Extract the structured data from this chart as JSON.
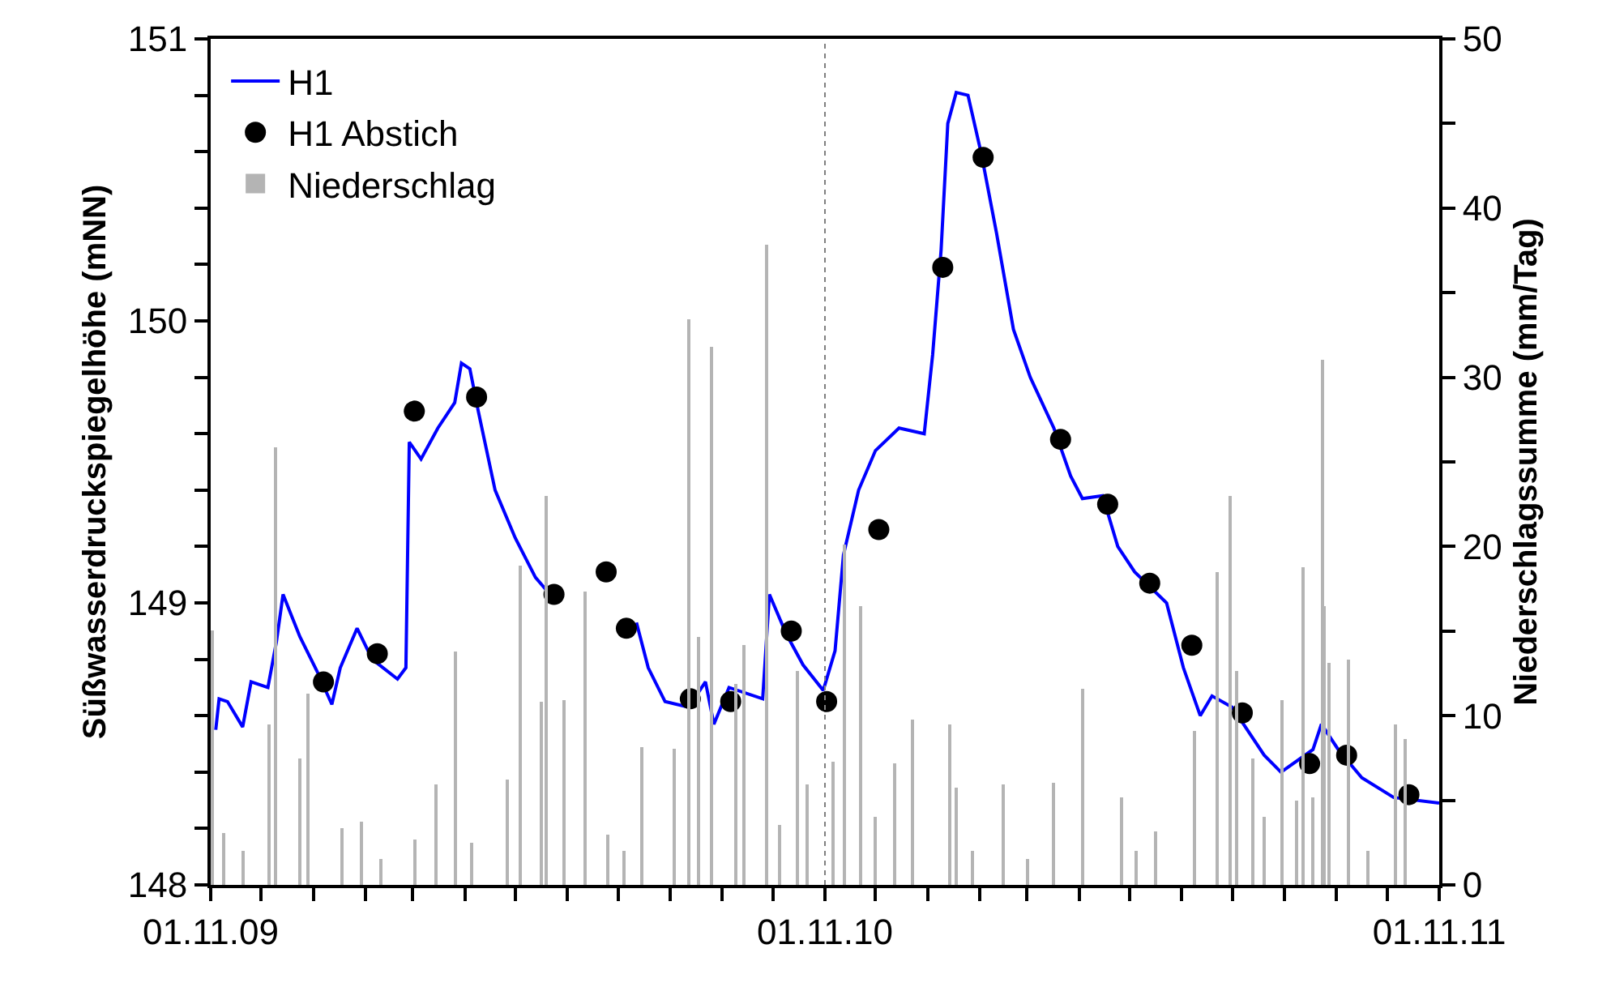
{
  "chart_data": {
    "type": "line",
    "xlabel": null,
    "ylabel": "Süßwasserdruckspiegelhöhe (mNN)",
    "y2label": "Niederschlagssumme (mm/Tag)",
    "xlim": [
      "2009-11-01",
      "2011-11-01"
    ],
    "xticks": [
      {
        "value": "2009-11-01",
        "label": "01.11.09"
      },
      {
        "value": "2009-12-01",
        "label": null
      },
      {
        "value": "2010-01-01",
        "label": null
      },
      {
        "value": "2010-02-01",
        "label": null
      },
      {
        "value": "2010-03-01",
        "label": null
      },
      {
        "value": "2010-04-01",
        "label": null
      },
      {
        "value": "2010-05-01",
        "label": null
      },
      {
        "value": "2010-06-01",
        "label": null
      },
      {
        "value": "2010-07-01",
        "label": null
      },
      {
        "value": "2010-08-01",
        "label": null
      },
      {
        "value": "2010-09-01",
        "label": null
      },
      {
        "value": "2010-10-01",
        "label": null
      },
      {
        "value": "2010-11-01",
        "label": "01.11.10"
      },
      {
        "value": "2010-12-01",
        "label": null
      },
      {
        "value": "2011-01-01",
        "label": null
      },
      {
        "value": "2011-02-01",
        "label": null
      },
      {
        "value": "2011-03-01",
        "label": null
      },
      {
        "value": "2011-04-01",
        "label": null
      },
      {
        "value": "2011-05-01",
        "label": null
      },
      {
        "value": "2011-06-01",
        "label": null
      },
      {
        "value": "2011-07-01",
        "label": null
      },
      {
        "value": "2011-08-01",
        "label": null
      },
      {
        "value": "2011-09-01",
        "label": null
      },
      {
        "value": "2011-10-01",
        "label": null
      },
      {
        "value": "2011-11-01",
        "label": "01.11.11"
      }
    ],
    "ylim": [
      148,
      151
    ],
    "yticks": [
      148,
      {
        "value": 148.2,
        "label": null
      },
      {
        "value": 148.4,
        "label": null
      },
      {
        "value": 148.6,
        "label": null
      },
      {
        "value": 148.8,
        "label": null
      },
      149,
      {
        "value": 149.2,
        "label": null
      },
      {
        "value": 149.4,
        "label": null
      },
      {
        "value": 149.6,
        "label": null
      },
      {
        "value": 149.8,
        "label": null
      },
      150,
      {
        "value": 150.2,
        "label": null
      },
      {
        "value": 150.4,
        "label": null
      },
      {
        "value": 150.6,
        "label": null
      },
      {
        "value": 150.8,
        "label": null
      },
      151
    ],
    "y2lim": [
      0,
      50
    ],
    "y2ticks": [
      0,
      {
        "value": 5,
        "label": null
      },
      10,
      {
        "value": 15,
        "label": null
      },
      20,
      {
        "value": 25,
        "label": null
      },
      30,
      {
        "value": 35,
        "label": null
      },
      40,
      {
        "value": 45,
        "label": null
      },
      50
    ],
    "legend": "top left",
    "ref_lines": [
      {
        "axis": "x",
        "value": "2010-11-01",
        "label": null,
        "color": "#808080",
        "line_style": "dotted"
      }
    ],
    "series": [
      {
        "name": "Niederschlag",
        "type": "bar",
        "axis": "y2",
        "color": "#b4b4b4",
        "x": [
          "2009-11-02",
          "2009-11-09",
          "2009-11-20",
          "2009-12-06",
          "2009-12-10",
          "2009-12-24",
          "2009-12-29",
          "2010-01-18",
          "2010-01-30",
          "2010-02-10",
          "2010-03-02",
          "2010-03-15",
          "2010-03-26",
          "2010-04-05",
          "2010-04-26",
          "2010-05-04",
          "2010-05-16",
          "2010-05-19",
          "2010-05-30",
          "2010-06-11",
          "2010-06-25",
          "2010-07-05",
          "2010-07-15",
          "2010-08-03",
          "2010-08-12",
          "2010-08-18",
          "2010-08-26",
          "2010-09-09",
          "2010-09-14",
          "2010-09-27",
          "2010-10-05",
          "2010-10-16",
          "2010-10-21",
          "2010-11-06",
          "2010-11-13",
          "2010-11-22",
          "2010-12-01",
          "2010-12-12",
          "2010-12-23",
          "2011-01-14",
          "2011-01-18",
          "2011-01-28",
          "2011-02-15",
          "2011-03-01",
          "2011-03-17",
          "2011-04-03",
          "2011-04-26",
          "2011-05-05",
          "2011-05-16",
          "2011-06-09",
          "2011-06-22",
          "2011-06-30",
          "2011-07-04",
          "2011-07-13",
          "2011-07-20",
          "2011-07-31",
          "2011-08-08",
          "2011-08-12",
          "2011-08-18",
          "2011-08-24",
          "2011-08-25",
          "2011-08-28",
          "2011-09-08",
          "2011-09-20",
          "2011-10-06",
          "2011-10-12"
        ],
        "values": [
          15.0,
          3.1,
          2.0,
          9.5,
          25.9,
          7.5,
          11.3,
          3.4,
          3.7,
          1.5,
          2.7,
          5.9,
          13.8,
          2.5,
          6.2,
          18.9,
          10.8,
          23.0,
          10.9,
          17.3,
          3.0,
          2.0,
          8.1,
          8.0,
          33.4,
          14.7,
          31.8,
          11.9,
          14.2,
          37.8,
          3.5,
          12.6,
          5.9,
          7.3,
          20.1,
          16.5,
          4.0,
          7.2,
          9.8,
          9.5,
          5.7,
          2.0,
          5.9,
          1.5,
          6.0,
          11.6,
          5.2,
          2.0,
          3.2,
          9.1,
          18.5,
          23.0,
          12.6,
          7.5,
          4.0,
          10.9,
          5.0,
          18.8,
          5.2,
          31.0,
          16.5,
          13.1,
          13.3,
          2.0,
          9.5,
          8.6
        ]
      },
      {
        "name": "H1",
        "color": "#0000ff",
        "line_style": "solid",
        "marker": "none",
        "x": [
          "2009-11-04",
          "2009-11-06",
          "2009-11-11",
          "2009-11-20",
          "2009-11-25",
          "2009-12-05",
          "2009-12-10",
          "2009-12-14",
          "2009-12-24",
          "2010-01-03",
          "2010-01-12",
          "2010-01-17",
          "2010-01-27",
          "2010-02-05",
          "2010-02-20",
          "2010-02-25",
          "2010-02-27",
          "2010-03-06",
          "2010-03-16",
          "2010-03-26",
          "2010-03-30",
          "2010-04-04",
          "2010-04-09",
          "2010-04-19",
          "2010-05-01",
          "2010-05-13",
          "2010-05-26",
          "2010-06-15",
          "2010-07-12",
          "2010-07-19",
          "2010-07-29",
          "2010-08-12",
          "2010-08-22",
          "2010-08-27",
          "2010-09-05",
          "2010-09-25",
          "2010-09-29",
          "2010-10-09",
          "2010-10-19",
          "2010-10-31",
          "2010-11-07",
          "2010-11-12",
          "2010-11-21",
          "2010-12-01",
          "2010-12-15",
          "2010-12-30",
          "2011-01-04",
          "2011-01-09",
          "2011-01-13",
          "2011-01-18",
          "2011-01-25",
          "2011-02-02",
          "2011-02-11",
          "2011-02-21",
          "2011-03-03",
          "2011-03-17",
          "2011-03-27",
          "2011-04-03",
          "2011-04-15",
          "2011-04-24",
          "2011-05-04",
          "2011-05-23",
          "2011-06-02",
          "2011-06-12",
          "2011-06-19",
          "2011-07-01",
          "2011-07-20",
          "2011-07-30",
          "2011-08-18",
          "2011-08-23",
          "2011-09-02",
          "2011-09-16",
          "2011-10-05",
          "2011-11-01"
        ],
        "values": [
          148.55,
          148.66,
          148.65,
          148.56,
          148.72,
          148.7,
          148.86,
          149.03,
          148.88,
          148.76,
          148.64,
          148.77,
          148.91,
          148.8,
          148.73,
          148.77,
          149.57,
          149.51,
          149.62,
          149.71,
          149.85,
          149.83,
          149.68,
          149.4,
          149.23,
          149.09,
          149.0,
          null,
          148.93,
          148.77,
          148.65,
          148.63,
          148.72,
          148.57,
          148.7,
          148.66,
          149.03,
          148.89,
          148.78,
          148.69,
          148.83,
          149.17,
          149.4,
          149.54,
          149.62,
          149.6,
          149.88,
          150.25,
          150.7,
          150.81,
          150.8,
          150.59,
          150.31,
          149.97,
          149.8,
          149.62,
          149.45,
          149.37,
          149.38,
          149.2,
          149.11,
          149.0,
          148.77,
          148.6,
          148.67,
          148.63,
          148.46,
          148.4,
          148.48,
          148.57,
          148.48,
          148.38,
          148.31,
          148.29
        ]
      },
      {
        "name": "H1 Abstich",
        "type": "scatter",
        "color": "#000000",
        "marker": "circle",
        "x": [
          "2010-01-07",
          "2010-02-08",
          "2010-03-02",
          "2010-04-08",
          "2010-05-24",
          "2010-06-24",
          "2010-07-06",
          "2010-08-13",
          "2010-09-06",
          "2010-10-12",
          "2010-11-02",
          "2010-12-03",
          "2011-01-10",
          "2011-02-03",
          "2011-03-21",
          "2011-04-18",
          "2011-05-13",
          "2011-06-07",
          "2011-07-07",
          "2011-08-16",
          "2011-09-07",
          "2011-10-14"
        ],
        "values": [
          148.72,
          148.82,
          149.68,
          149.73,
          149.03,
          149.11,
          148.91,
          148.66,
          148.65,
          148.9,
          148.65,
          149.26,
          150.19,
          150.58,
          149.58,
          149.35,
          149.07,
          148.85,
          148.61,
          148.43,
          148.46,
          148.32
        ]
      }
    ]
  }
}
